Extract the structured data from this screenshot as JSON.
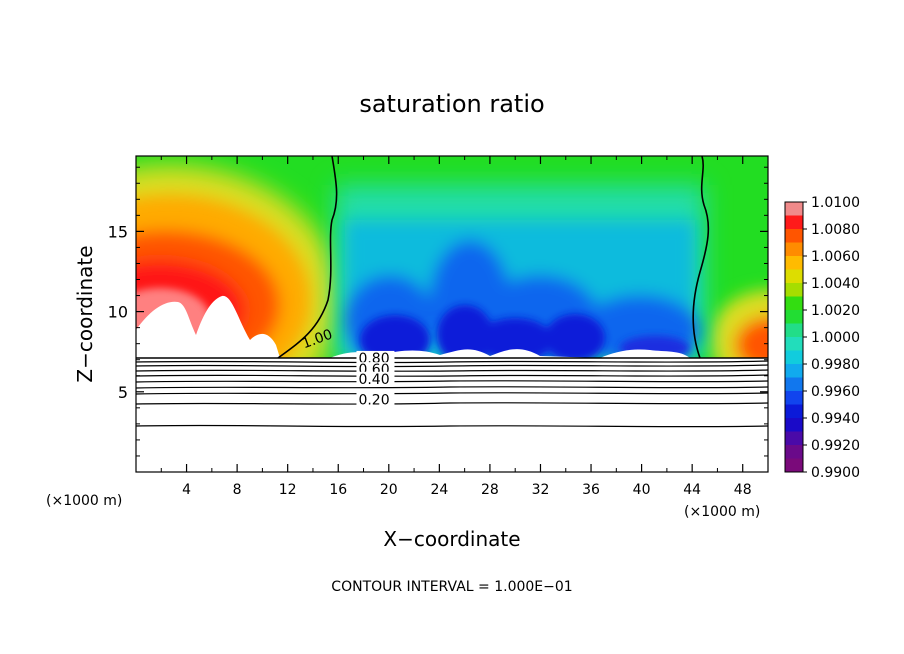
{
  "chart_data": {
    "type": "heatmap",
    "title": "saturation ratio",
    "xlabel": "X−coordinate",
    "ylabel": "Z−coordinate",
    "x_unit_left": "(×1000 m)",
    "x_unit_right": "(×1000 m)",
    "footer": "CONTOUR INTERVAL = 1.000E−01",
    "xlim": [
      0,
      50
    ],
    "ylim": [
      0,
      19.7
    ],
    "x_ticks": [
      4,
      8,
      12,
      16,
      20,
      24,
      28,
      32,
      36,
      40,
      44,
      48
    ],
    "y_ticks": [
      5,
      10,
      15
    ],
    "colorbar": {
      "min": 0.99,
      "max": 1.01,
      "tick_labels": [
        "1.0100",
        "1.0080",
        "1.0060",
        "1.0040",
        "1.0020",
        "1.0000",
        "0.9980",
        "0.9960",
        "0.9940",
        "0.9920",
        "0.9900"
      ]
    },
    "saturated_layer_base_z": 7.3,
    "contours": [
      {
        "value": 1.0,
        "label": "1.00",
        "label_x": 13.3,
        "label_z": 7.7
      },
      {
        "value": 0.8,
        "label": "0.80",
        "label_x": 17.6,
        "label_z": 6.8
      },
      {
        "value": 0.6,
        "label": "0.60",
        "label_x": 17.6,
        "label_z": 6.1
      },
      {
        "value": 0.4,
        "label": "0.40",
        "label_x": 17.6,
        "label_z": 5.5
      },
      {
        "value": 0.2,
        "label": "0.20",
        "label_x": 17.6,
        "label_z": 4.2
      }
    ],
    "regions": [
      {
        "description": "supersaturated (>=1.008) max",
        "x_range": [
          0,
          12
        ],
        "z_range": [
          8.5,
          13
        ]
      },
      {
        "description": "subsaturated (~0.992) min",
        "x_range": [
          18,
          36
        ],
        "z_range": [
          7.3,
          11
        ]
      }
    ]
  }
}
